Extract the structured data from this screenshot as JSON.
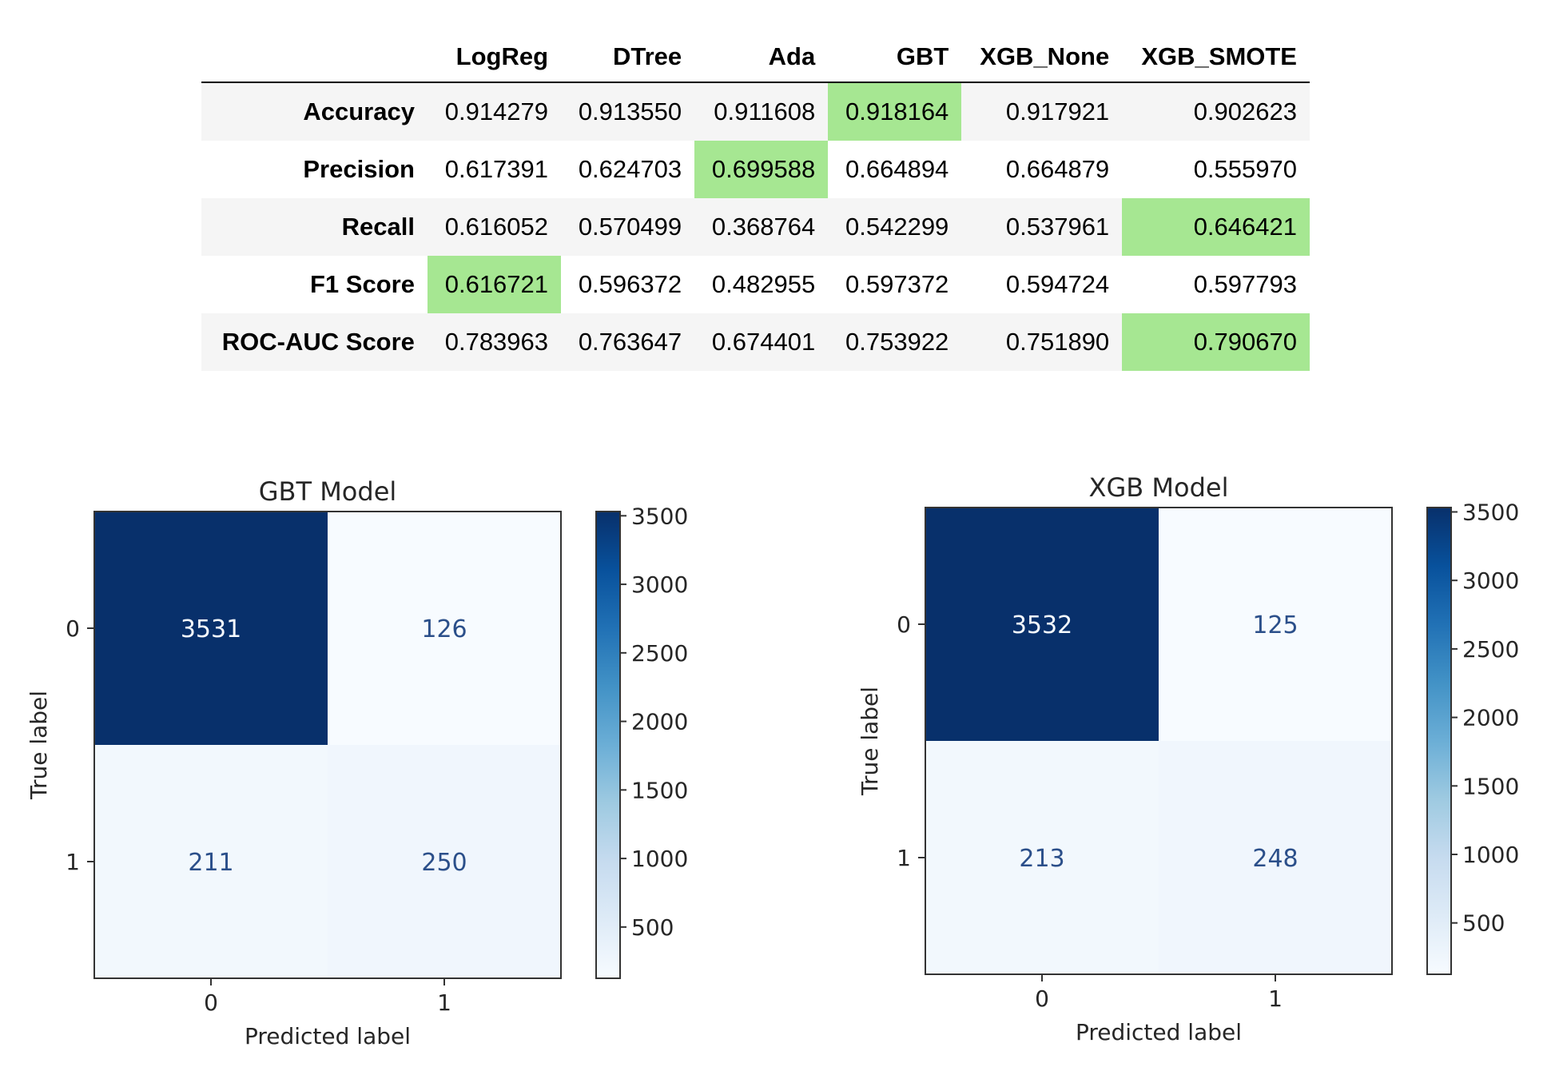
{
  "table": {
    "columns": [
      "",
      "LogReg",
      "DTree",
      "Ada",
      "GBT",
      "XGB_None",
      "XGB_SMOTE"
    ],
    "rows": [
      {
        "label": "Accuracy",
        "values": [
          "0.914279",
          "0.913550",
          "0.911608",
          "0.918164",
          "0.917921",
          "0.902623"
        ],
        "best_col": 3
      },
      {
        "label": "Precision",
        "values": [
          "0.617391",
          "0.624703",
          "0.699588",
          "0.664894",
          "0.664879",
          "0.555970"
        ],
        "best_col": 2
      },
      {
        "label": "Recall",
        "values": [
          "0.616052",
          "0.570499",
          "0.368764",
          "0.542299",
          "0.537961",
          "0.646421"
        ],
        "best_col": 5
      },
      {
        "label": "F1 Score",
        "values": [
          "0.616721",
          "0.596372",
          "0.482955",
          "0.597372",
          "0.594724",
          "0.597793"
        ],
        "best_col": 0
      },
      {
        "label": "ROC-AUC Score",
        "values": [
          "0.783963",
          "0.763647",
          "0.674401",
          "0.753922",
          "0.751890",
          "0.790670"
        ],
        "best_col": 5
      }
    ],
    "highlight_color": "#a6e792"
  },
  "chart_data": [
    {
      "type": "heatmap",
      "title": "GBT Model",
      "xlabel": "Predicted label",
      "ylabel": "True label",
      "x_categories": [
        "0",
        "1"
      ],
      "y_categories": [
        "0",
        "1"
      ],
      "values": [
        [
          3531,
          126
        ],
        [
          211,
          250
        ]
      ],
      "colormap": "Blues",
      "colorbar_ticks": [
        500,
        1000,
        1500,
        2000,
        2500,
        3000,
        3500
      ],
      "colorbar_range": [
        126,
        3531
      ]
    },
    {
      "type": "heatmap",
      "title": "XGB Model",
      "xlabel": "Predicted label",
      "ylabel": "True label",
      "x_categories": [
        "0",
        "1"
      ],
      "y_categories": [
        "0",
        "1"
      ],
      "values": [
        [
          3532,
          125
        ],
        [
          213,
          248
        ]
      ],
      "colormap": "Blues",
      "colorbar_ticks": [
        500,
        1000,
        1500,
        2000,
        2500,
        3000,
        3500
      ],
      "colorbar_range": [
        125,
        3532
      ]
    }
  ]
}
